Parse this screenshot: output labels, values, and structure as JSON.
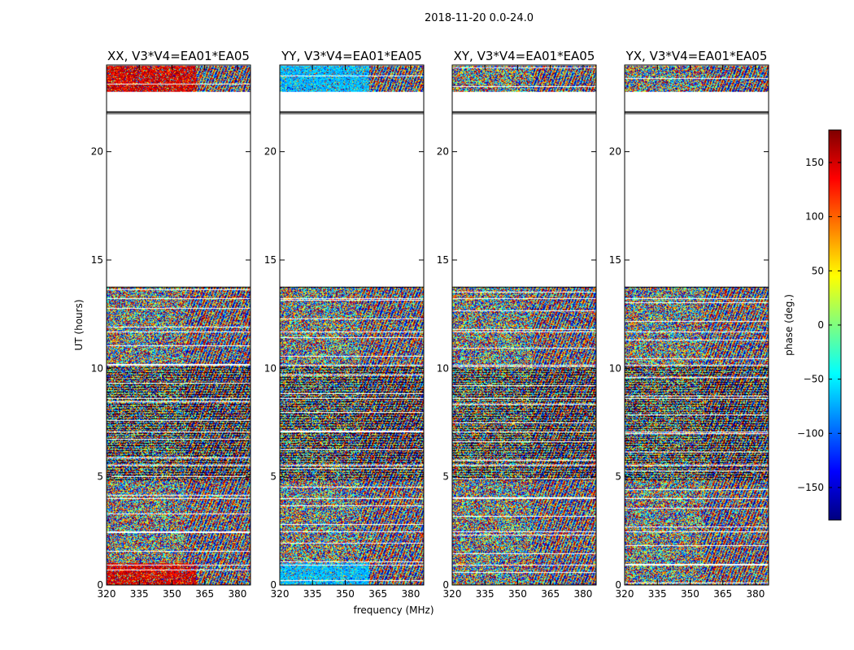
{
  "figure": {
    "suptitle": "2018-11-20 0.0-24.0",
    "xlabel": "frequency (MHz)",
    "ylabel": "UT (hours)"
  },
  "colorbar": {
    "label": "phase (deg.)",
    "range": [
      -180,
      180
    ],
    "ticks": [
      -150,
      -100,
      -50,
      0,
      50,
      100,
      150
    ],
    "tick_labels": [
      "−150",
      "−100",
      "−50",
      "0",
      "50",
      "100",
      "150"
    ],
    "colormap": [
      "#00007f",
      "#0000ff",
      "#007fff",
      "#00ffff",
      "#7fff7f",
      "#ffff00",
      "#ff7f00",
      "#ff0000",
      "#7f0000"
    ]
  },
  "chart_data": [
    {
      "type": "heatmap",
      "title": "XX, V3*V4=EA01*EA05",
      "xlabel": "frequency (MHz)",
      "ylabel": "UT (hours)",
      "xlim": [
        320,
        386
      ],
      "ylim": [
        0,
        24
      ],
      "xticks": [
        320,
        335,
        350,
        365,
        380
      ],
      "yticks": [
        0,
        5,
        10,
        15,
        20
      ],
      "value_range": [
        -180,
        180
      ],
      "data_ut_ranges": [
        [
          0,
          13.75
        ],
        [
          22.75,
          24
        ]
      ],
      "blank_ut_ranges": [
        [
          13.75,
          22.75
        ]
      ],
      "character": "red-orange phases (~+120 to +180 deg) at low frequencies near 0-1 h and 23-24 h; noisy mixed phases elsewhere"
    },
    {
      "type": "heatmap",
      "title": "YY, V3*V4=EA01*EA05",
      "xlabel": "frequency (MHz)",
      "ylabel": "UT (hours)",
      "xlim": [
        320,
        386
      ],
      "ylim": [
        0,
        24
      ],
      "xticks": [
        320,
        335,
        350,
        365,
        380
      ],
      "yticks": [
        0,
        5,
        10,
        15,
        20
      ],
      "value_range": [
        -180,
        180
      ],
      "data_ut_ranges": [
        [
          0,
          13.75
        ],
        [
          22.75,
          24
        ]
      ],
      "blank_ut_ranges": [
        [
          13.75,
          22.75
        ]
      ],
      "character": "cyan-blue phases (~-60 to -100 deg) at low frequencies near 0-1 h and 23-24 h; noisy mixed phases elsewhere"
    },
    {
      "type": "heatmap",
      "title": "XY, V3*V4=EA01*EA05",
      "xlabel": "frequency (MHz)",
      "ylabel": "UT (hours)",
      "xlim": [
        320,
        386
      ],
      "ylim": [
        0,
        24
      ],
      "xticks": [
        320,
        335,
        350,
        365,
        380
      ],
      "yticks": [
        0,
        5,
        10,
        15,
        20
      ],
      "value_range": [
        -180,
        180
      ],
      "data_ut_ranges": [
        [
          0,
          13.75
        ],
        [
          22.75,
          24
        ]
      ],
      "blank_ut_ranges": [
        [
          13.75,
          22.75
        ]
      ],
      "character": "noisy phases spanning full range"
    },
    {
      "type": "heatmap",
      "title": "YX, V3*V4=EA01*EA05",
      "xlabel": "frequency (MHz)",
      "ylabel": "UT (hours)",
      "xlim": [
        320,
        386
      ],
      "ylim": [
        0,
        24
      ],
      "xticks": [
        320,
        335,
        350,
        365,
        380
      ],
      "yticks": [
        0,
        5,
        10,
        15,
        20
      ],
      "value_range": [
        -180,
        180
      ],
      "data_ut_ranges": [
        [
          0,
          13.75
        ],
        [
          22.75,
          24
        ]
      ],
      "blank_ut_ranges": [
        [
          13.75,
          22.75
        ]
      ],
      "character": "noisy phases spanning full range"
    }
  ]
}
